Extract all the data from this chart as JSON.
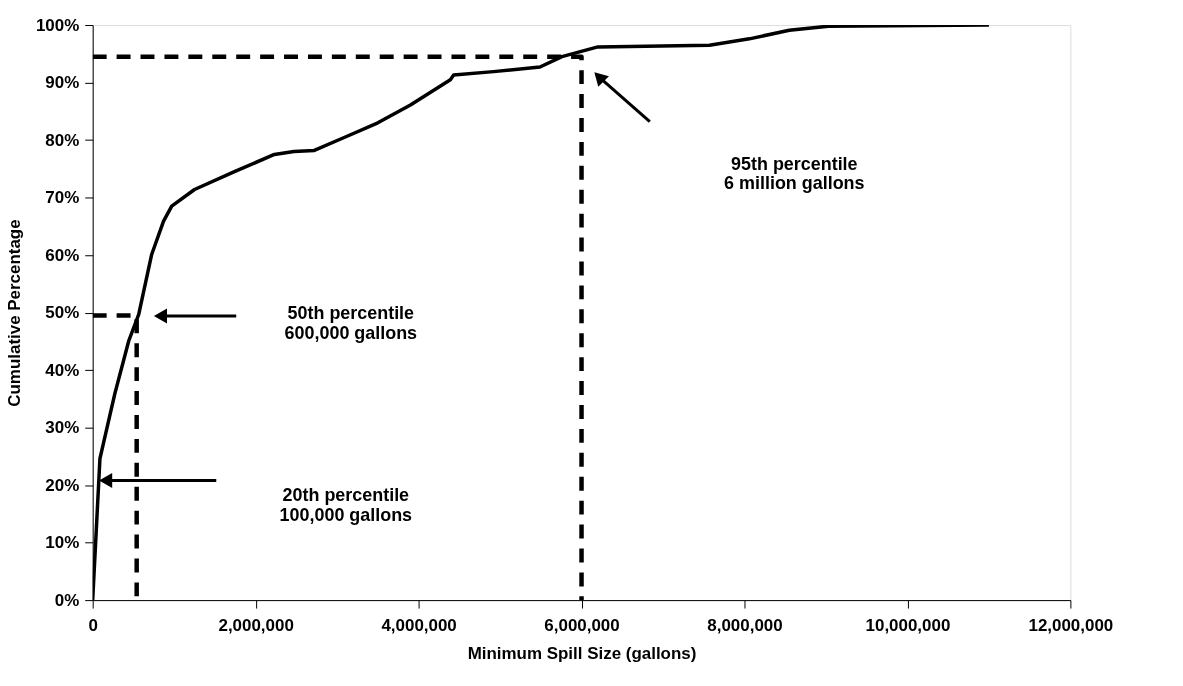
{
  "chart_data": {
    "type": "line",
    "xlabel": "Minimum Spill Size (gallons)",
    "ylabel": "Cumulative Percentage",
    "xlim": [
      0,
      12000000
    ],
    "ylim": [
      0,
      100
    ],
    "xticks": [
      0,
      {
        "value": 2000000,
        "label": "2,000,000"
      },
      {
        "value": 4000000,
        "label": "4,000,000"
      },
      {
        "value": 6000000,
        "label": "6,000,000"
      },
      {
        "value": 8000000,
        "label": "8,000,000"
      },
      {
        "value": 10000000,
        "label": "10,000,000"
      },
      {
        "value": 12000000,
        "label": "12,000,000"
      }
    ],
    "yticks": [
      {
        "value": 0,
        "label": "0%"
      },
      {
        "value": 10,
        "label": "10%"
      },
      {
        "value": 20,
        "label": "20%"
      },
      {
        "value": 30,
        "label": "30%"
      },
      {
        "value": 40,
        "label": "40%"
      },
      {
        "value": 50,
        "label": "50%"
      },
      {
        "value": 60,
        "label": "60%"
      },
      {
        "value": 70,
        "label": "70%"
      },
      {
        "value": 80,
        "label": "80%"
      },
      {
        "value": 90,
        "label": "90%"
      },
      {
        "value": 100,
        "label": "100%"
      }
    ],
    "grid": false,
    "marker": "none",
    "series": [
      {
        "color": "#000000",
        "line_style": "solid",
        "x": [
          0,
          89000,
          272000,
          443000,
          565000,
          724000,
          870000,
          970000,
          1250000,
          1740000,
          2230000,
          2470000,
          2720000,
          3080000,
          3500000,
          3900000,
          4390000,
          4430000,
          4920000,
          5490000,
          5760000,
          6200000,
          7570000,
          8060000,
          8550000,
          9030000,
          11000000
        ],
        "values": [
          0,
          24.6,
          35.9,
          45.1,
          49.7,
          60.1,
          65.9,
          68.5,
          71.4,
          74.5,
          77.5,
          78.0,
          78.2,
          80.4,
          83.0,
          86.1,
          90.5,
          91.3,
          91.9,
          92.7,
          94.5,
          96.2,
          96.5,
          97.6,
          99.1,
          99.8,
          100
        ]
      },
      {
        "color": "#000000",
        "line_style": "dashed",
        "x": [
          0,
          540000,
          540000
        ],
        "values": [
          49.5,
          49.5,
          0
        ]
      },
      {
        "color": "#000000",
        "line_style": "dashed",
        "x": [
          0,
          6000000,
          6000000
        ],
        "values": [
          94.5,
          94.5,
          0
        ]
      }
    ],
    "annotations": [
      "20th percentile\n100,000 gallons",
      "50th percentile\n600,000 gallons",
      "95th percentile\n6 million gallons"
    ]
  }
}
